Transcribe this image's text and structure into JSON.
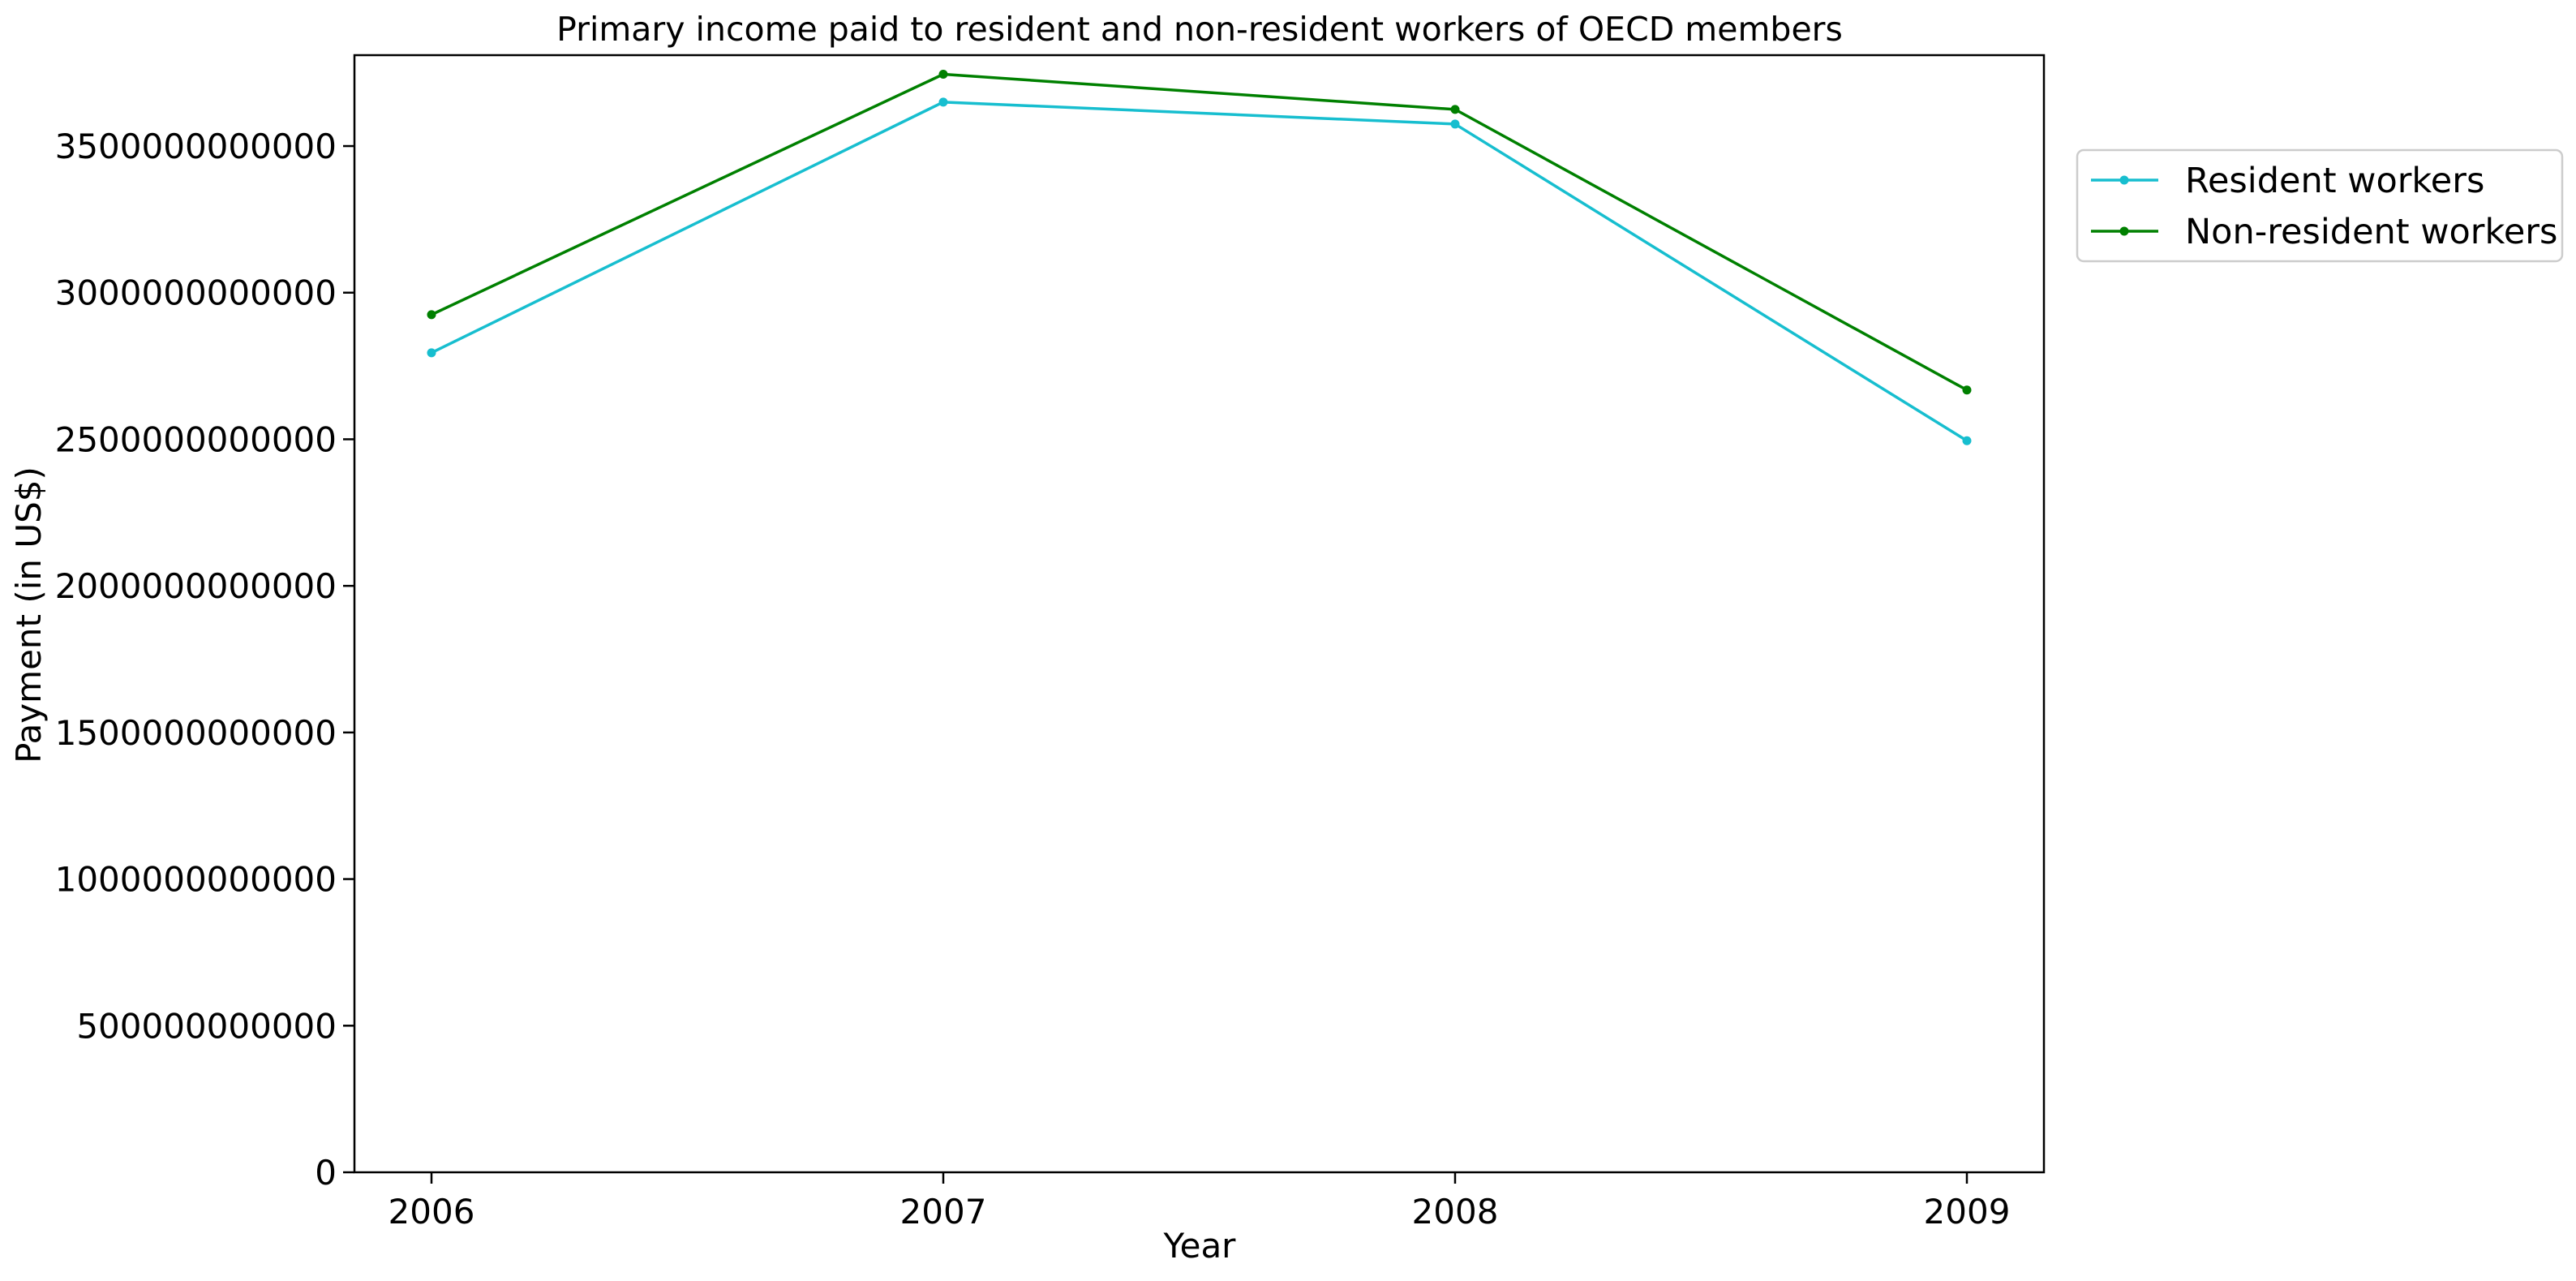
{
  "chart_data": {
    "type": "line",
    "title": "Primary income paid to resident and non-resident workers of OECD members",
    "xlabel": "Year",
    "ylabel": "Payment (in US$)",
    "x": [
      "2006",
      "2007",
      "2008",
      "2009"
    ],
    "ylim": [
      0,
      3810000000000
    ],
    "yticks": [
      0,
      500000000000,
      1000000000000,
      1500000000000,
      2000000000000,
      2500000000000,
      3000000000000,
      3500000000000
    ],
    "ytick_labels": [
      "0",
      "500000000000",
      "1000000000000",
      "1500000000000",
      "2000000000000",
      "2500000000000",
      "3000000000000",
      "3500000000000"
    ],
    "grid": false,
    "legend_position": "outside right, top",
    "series": [
      {
        "name": "Resident workers",
        "color": "#17becf",
        "marker": "dot",
        "values": [
          2795000000000,
          3650000000000,
          3575000000000,
          2495000000000
        ]
      },
      {
        "name": "Non-resident workers",
        "color": "#008000",
        "marker": "dot",
        "values": [
          2925000000000,
          3745000000000,
          3625000000000,
          2668000000000
        ]
      }
    ]
  }
}
